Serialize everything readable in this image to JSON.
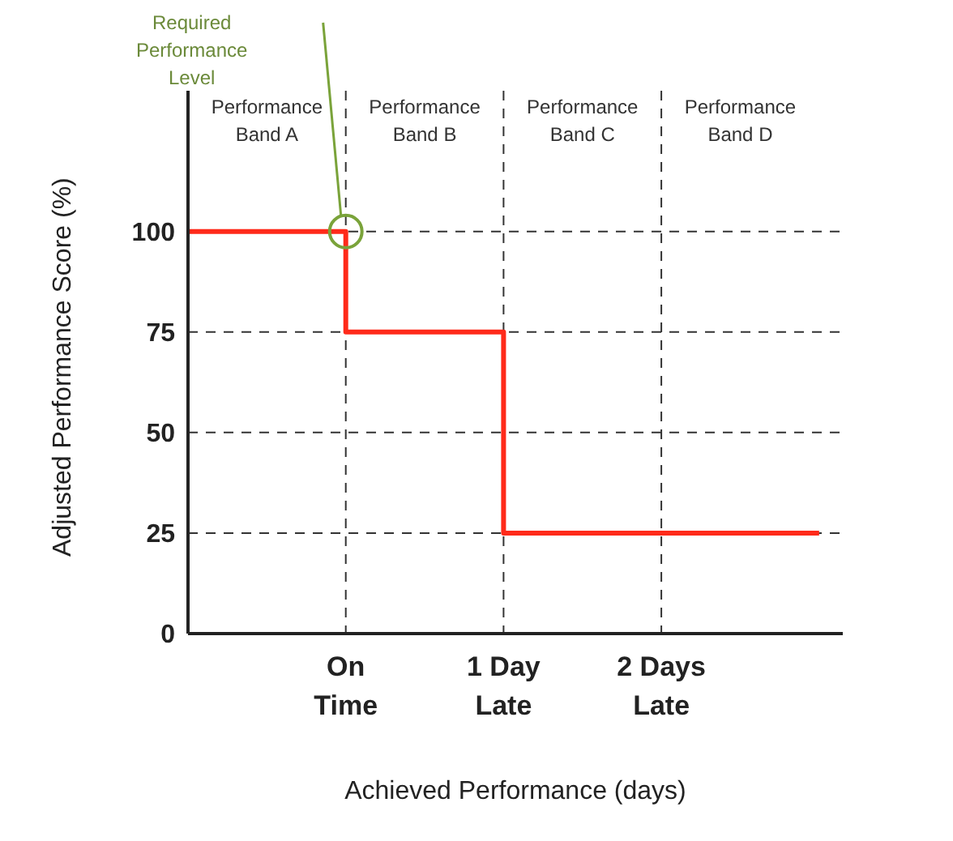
{
  "chart_data": {
    "type": "step",
    "xlabel": "Achieved Performance (days)",
    "ylabel": "Adjusted  Performance Score (%)",
    "categories": [
      null,
      "On Time",
      "1 Day Late",
      "2 Days Late",
      null
    ],
    "series": [
      {
        "color": "#ff2a1a",
        "values": [
          100,
          75,
          25,
          25,
          25
        ]
      }
    ],
    "ylim": [
      0,
      135
    ],
    "yticks": [
      0,
      25,
      50,
      75,
      100
    ],
    "annotations": [
      "Required Performance Level",
      "Performance Band A",
      "Performance Band B",
      "Performance Band C",
      "Performance Band D"
    ],
    "grid": true,
    "line_style": "solid",
    "marker": "none",
    "legend": false
  }
}
